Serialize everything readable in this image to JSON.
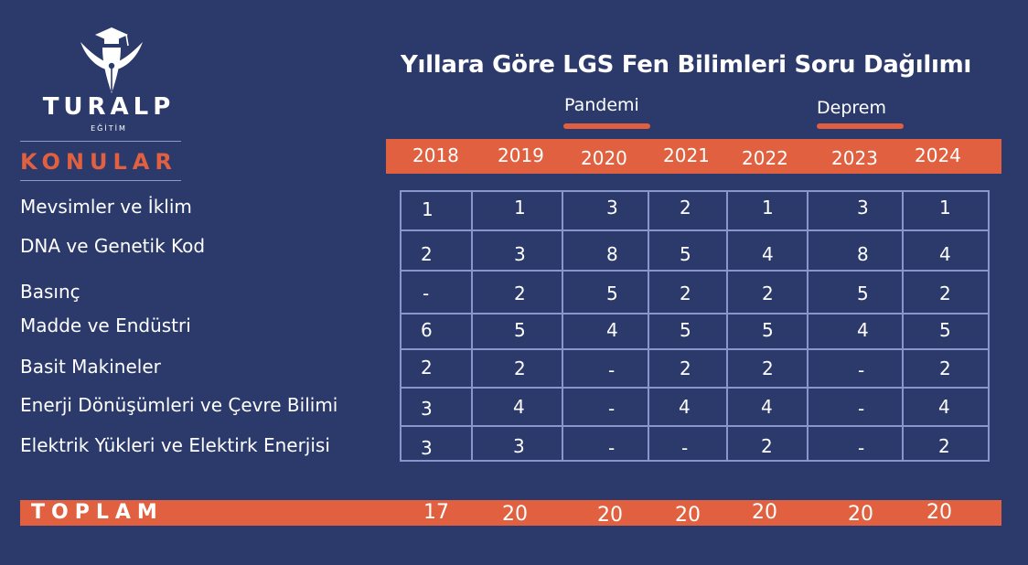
{
  "brand": {
    "name": "TURALP",
    "sub": "EĞİTİM"
  },
  "title": "Yıllara Göre LGS Fen Bilimleri Soru Dağılımı",
  "notes": {
    "pandemi": "Pandemi",
    "deprem": "Deprem"
  },
  "konular_header": "KONULAR",
  "years": [
    "2018",
    "2019",
    "2020",
    "2021",
    "2022",
    "2023",
    "2024"
  ],
  "topics": [
    "Mevsimler ve İklim",
    "DNA ve Genetik Kod",
    "Basınç",
    "Madde ve Endüstri",
    "Basit Makineler",
    "Enerji Dönüşümleri ve Çevre Bilimi",
    "Elektrik Yükleri ve Elektirk Enerjisi"
  ],
  "rows": [
    [
      "1",
      "1",
      "3",
      "2",
      "1",
      "3",
      "1"
    ],
    [
      "2",
      "3",
      "8",
      "5",
      "4",
      "8",
      "4"
    ],
    [
      "-",
      "2",
      "5",
      "2",
      "2",
      "5",
      "2"
    ],
    [
      "6",
      "5",
      "4",
      "5",
      "5",
      "4",
      "5"
    ],
    [
      "2",
      "2",
      "-",
      "2",
      "2",
      "-",
      "2"
    ],
    [
      "3",
      "4",
      "-",
      "4",
      "4",
      "-",
      "4"
    ],
    [
      "3",
      "3",
      "-",
      "-",
      "2",
      "-",
      "2"
    ]
  ],
  "total": {
    "label": "TOPLAM",
    "values": [
      "17",
      "20",
      "20",
      "20",
      "20",
      "20",
      "20"
    ]
  },
  "colors": {
    "background": "#2b3a6b",
    "accent": "#e0603f",
    "grid": "#8797cc",
    "text": "#ffffff"
  }
}
